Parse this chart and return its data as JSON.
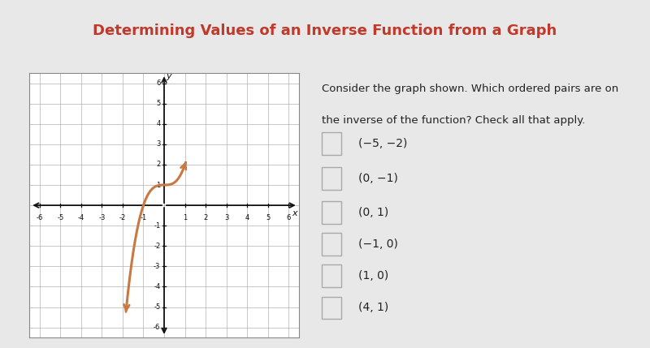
{
  "title": "Determining Values of an Inverse Function from a Graph",
  "title_color": "#c0392b",
  "title_bg_color": "#dcdcdc",
  "content_bg_color": "#e8e8e8",
  "graph_bg_color": "#ffffff",
  "curve_color": "#c87941",
  "grid_color": "#b0b0b0",
  "axis_color": "#111111",
  "question_text_line1": "Consider the graph shown. Which ordered pairs are on",
  "question_text_line2": "the inverse of the function? Check all that apply.",
  "choices": [
    "(−5, −2)",
    "(0, −1)",
    "(0, 1)",
    "(−1, 0)",
    "(1, 0)",
    "(4, 1)"
  ],
  "xmin": -6,
  "xmax": 6,
  "ymin": -6,
  "ymax": 6,
  "xlabel": "x",
  "ylabel": "y",
  "checkbox_color": "#aaaaaa",
  "text_color": "#222222",
  "font_size_title": 13,
  "font_size_choices": 10,
  "font_size_question": 9.5,
  "font_size_tick": 6,
  "graph_border_color": "#888888"
}
